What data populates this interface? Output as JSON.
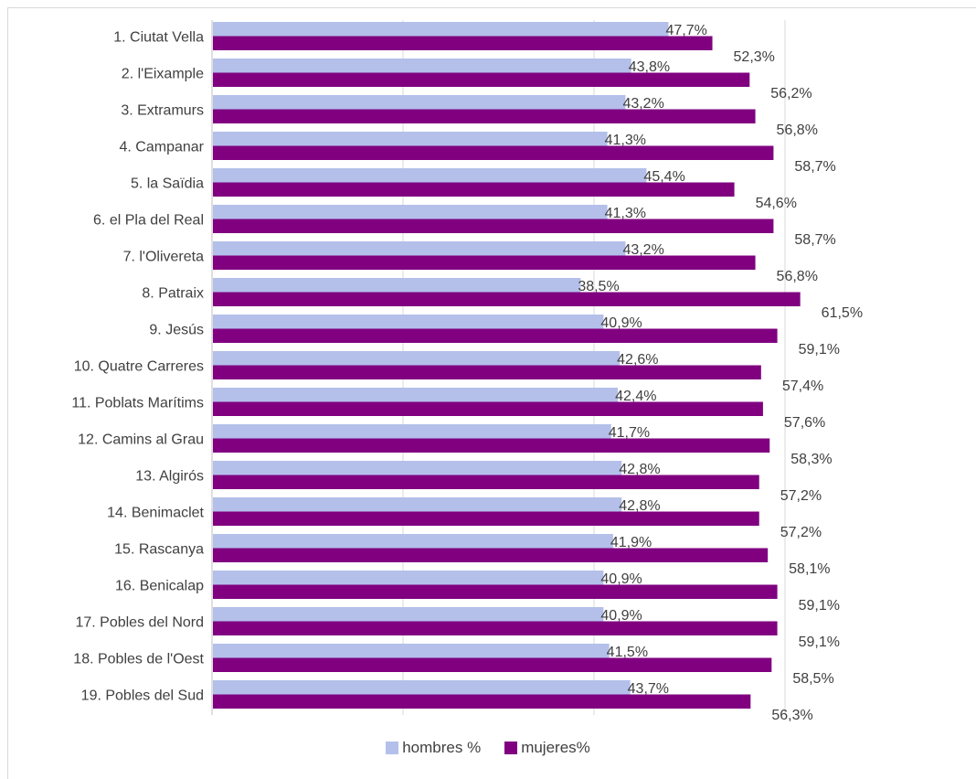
{
  "chart_data": {
    "type": "bar",
    "orientation": "horizontal",
    "categories": [
      "1. Ciutat Vella",
      "2. l'Eixample",
      "3. Extramurs",
      "4. Campanar",
      "5. la Saïdia",
      "6. el Pla del Real",
      "7. l'Olivereta",
      "8. Patraix",
      "9. Jesús",
      "10. Quatre Carreres",
      "11. Poblats Marítims",
      "12. Camins al Grau",
      "13. Algirós",
      "14. Benimaclet",
      "15. Rascanya",
      "16. Benicalap",
      "17. Pobles del Nord",
      "18. Pobles de l'Oest",
      "19. Pobles del Sud"
    ],
    "series": [
      {
        "name": "hombres %",
        "color": "#b4c0ea",
        "values": [
          47.7,
          43.8,
          43.2,
          41.3,
          45.4,
          41.3,
          43.2,
          38.5,
          40.9,
          42.6,
          42.4,
          41.7,
          42.8,
          42.8,
          41.9,
          40.9,
          40.9,
          41.5,
          43.7
        ],
        "labels": [
          "47,7%",
          "43,8%",
          "43,2%",
          "41,3%",
          "45,4%",
          "41,3%",
          "43,2%",
          "38,5%",
          "40,9%",
          "42,6%",
          "42,4%",
          "41,7%",
          "42,8%",
          "42,8%",
          "41,9%",
          "40,9%",
          "40,9%",
          "41,5%",
          "43,7%"
        ]
      },
      {
        "name": "mujeres%",
        "color": "#800080",
        "values": [
          52.3,
          56.2,
          56.8,
          58.7,
          54.6,
          58.7,
          56.8,
          61.5,
          59.1,
          57.4,
          57.6,
          58.3,
          57.2,
          57.2,
          58.1,
          59.1,
          59.1,
          58.5,
          56.3
        ],
        "labels": [
          "52,3%",
          "56,2%",
          "56,8%",
          "58,7%",
          "54,6%",
          "58,7%",
          "56,8%",
          "61,5%",
          "59,1%",
          "57,4%",
          "57,6%",
          "58,3%",
          "57,2%",
          "57,2%",
          "58,1%",
          "59,1%",
          "59,1%",
          "58,5%",
          "56,3%"
        ]
      }
    ],
    "xlim": [
      0,
      70
    ],
    "grid": true,
    "legend_position": "bottom"
  },
  "legend": {
    "items": [
      "hombres %",
      "mujeres%"
    ]
  }
}
